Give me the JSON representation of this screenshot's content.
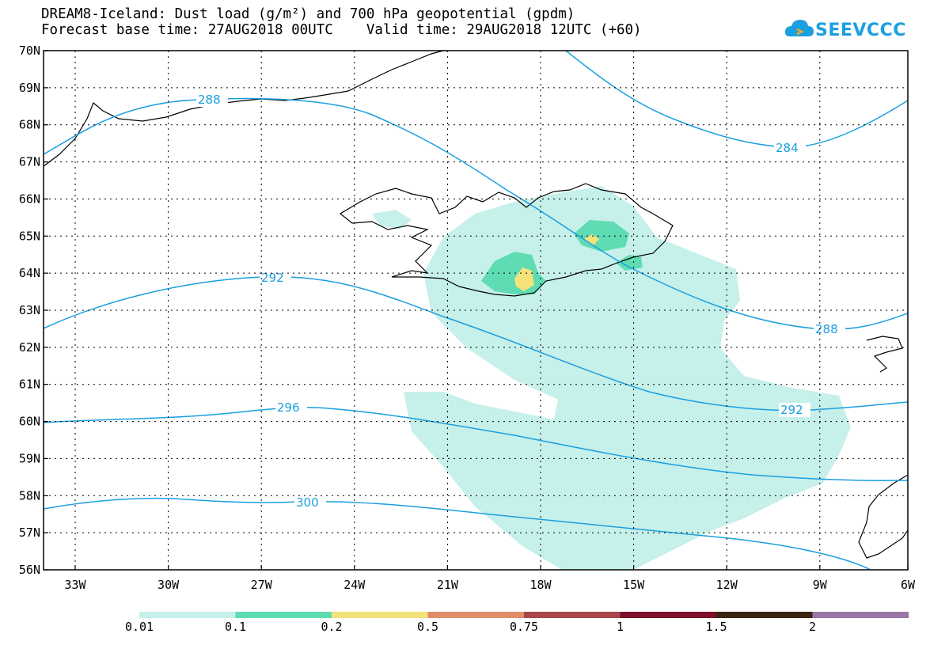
{
  "title": {
    "line1": "DREAM8-Iceland: Dust load (g/m²) and 700 hPa geopotential (gpdm)",
    "line2": "Forecast base time: 27AUG2018 00UTC    Valid time: 29AUG2018 12UTC (+60)"
  },
  "logo": {
    "text": "SEEVCCC",
    "icon": "cloud-icon",
    "color": "#1a9fe0"
  },
  "map": {
    "lat_labels": [
      "70N",
      "69N",
      "68N",
      "67N",
      "66N",
      "65N",
      "64N",
      "63N",
      "62N",
      "61N",
      "60N",
      "59N",
      "58N",
      "57N",
      "56N"
    ],
    "lon_labels": [
      "33W",
      "30W",
      "27W",
      "24W",
      "21W",
      "18W",
      "15W",
      "12W",
      "9W",
      "6W"
    ],
    "contour_color": "#1a9fe0",
    "contour_labels": [
      "288",
      "284",
      "292",
      "288",
      "296",
      "292",
      "300"
    ]
  },
  "colorbar": {
    "labels": [
      "0.01",
      "0.1",
      "0.2",
      "0.5",
      "0.75",
      "1",
      "1.5",
      "2"
    ],
    "colors": [
      "#c6f0ea",
      "#5fdcb3",
      "#f4e27a",
      "#e08f6a",
      "#a8484a",
      "#7d0f2c",
      "#3a2412",
      "#9a77a6"
    ]
  }
}
